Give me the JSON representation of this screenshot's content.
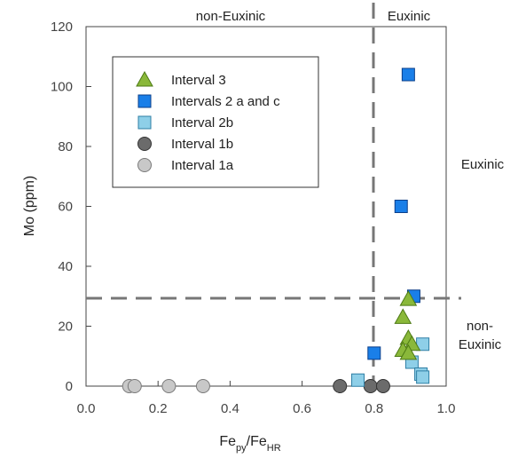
{
  "chart_data": {
    "type": "scatter",
    "xlabel": {
      "base": "Fe",
      "sub": "py",
      "mid": "/Fe",
      "sub2": "HR"
    },
    "ylabel": "Mo (ppm)",
    "xlim": [
      0.0,
      1.0
    ],
    "ylim": [
      0,
      120
    ],
    "xticks": [
      "0.0",
      "0.2",
      "0.4",
      "0.6",
      "0.8",
      "1.0"
    ],
    "yticks": [
      "0",
      "20",
      "40",
      "60",
      "80",
      "100",
      "120"
    ],
    "grid": false,
    "legend_position": "upper-left",
    "thresholds": {
      "x": 0.8,
      "y": 25
    },
    "region_labels": {
      "top_left": "non-Euxinic",
      "top_right": "Euxinic",
      "right_upper": "Euxinic",
      "right_lower_line1": "non-",
      "right_lower_line2": "Euxinic"
    },
    "series": [
      {
        "name": "Interval 3",
        "marker": "triangle",
        "color": "#8ab83a",
        "edge": "#4d7a14",
        "points": [
          [
            0.895,
            29
          ],
          [
            0.88,
            23
          ],
          [
            0.895,
            16
          ],
          [
            0.905,
            14
          ],
          [
            0.88,
            12
          ],
          [
            0.895,
            11
          ]
        ]
      },
      {
        "name": "Intervals 2 a and c",
        "marker": "square",
        "color": "#1a7fe8",
        "edge": "#0b3f8a",
        "points": [
          [
            0.895,
            104
          ],
          [
            0.875,
            60
          ],
          [
            0.91,
            30
          ],
          [
            0.8,
            11
          ]
        ]
      },
      {
        "name": "Interval 2b",
        "marker": "square",
        "color": "#8ecfe8",
        "edge": "#2f7fa5",
        "points": [
          [
            0.935,
            14
          ],
          [
            0.905,
            8
          ],
          [
            0.93,
            4
          ],
          [
            0.935,
            3
          ],
          [
            0.755,
            2
          ]
        ]
      },
      {
        "name": "Interval 1b",
        "marker": "circle",
        "color": "#6b6b6b",
        "edge": "#333333",
        "points": [
          [
            0.705,
            0
          ],
          [
            0.79,
            0
          ],
          [
            0.825,
            0
          ]
        ]
      },
      {
        "name": "Interval 1a",
        "marker": "circle",
        "color": "#c8c8c8",
        "edge": "#7a7a7a",
        "points": [
          [
            0.12,
            0
          ],
          [
            0.135,
            0
          ],
          [
            0.23,
            0
          ],
          [
            0.325,
            0
          ]
        ]
      }
    ]
  }
}
